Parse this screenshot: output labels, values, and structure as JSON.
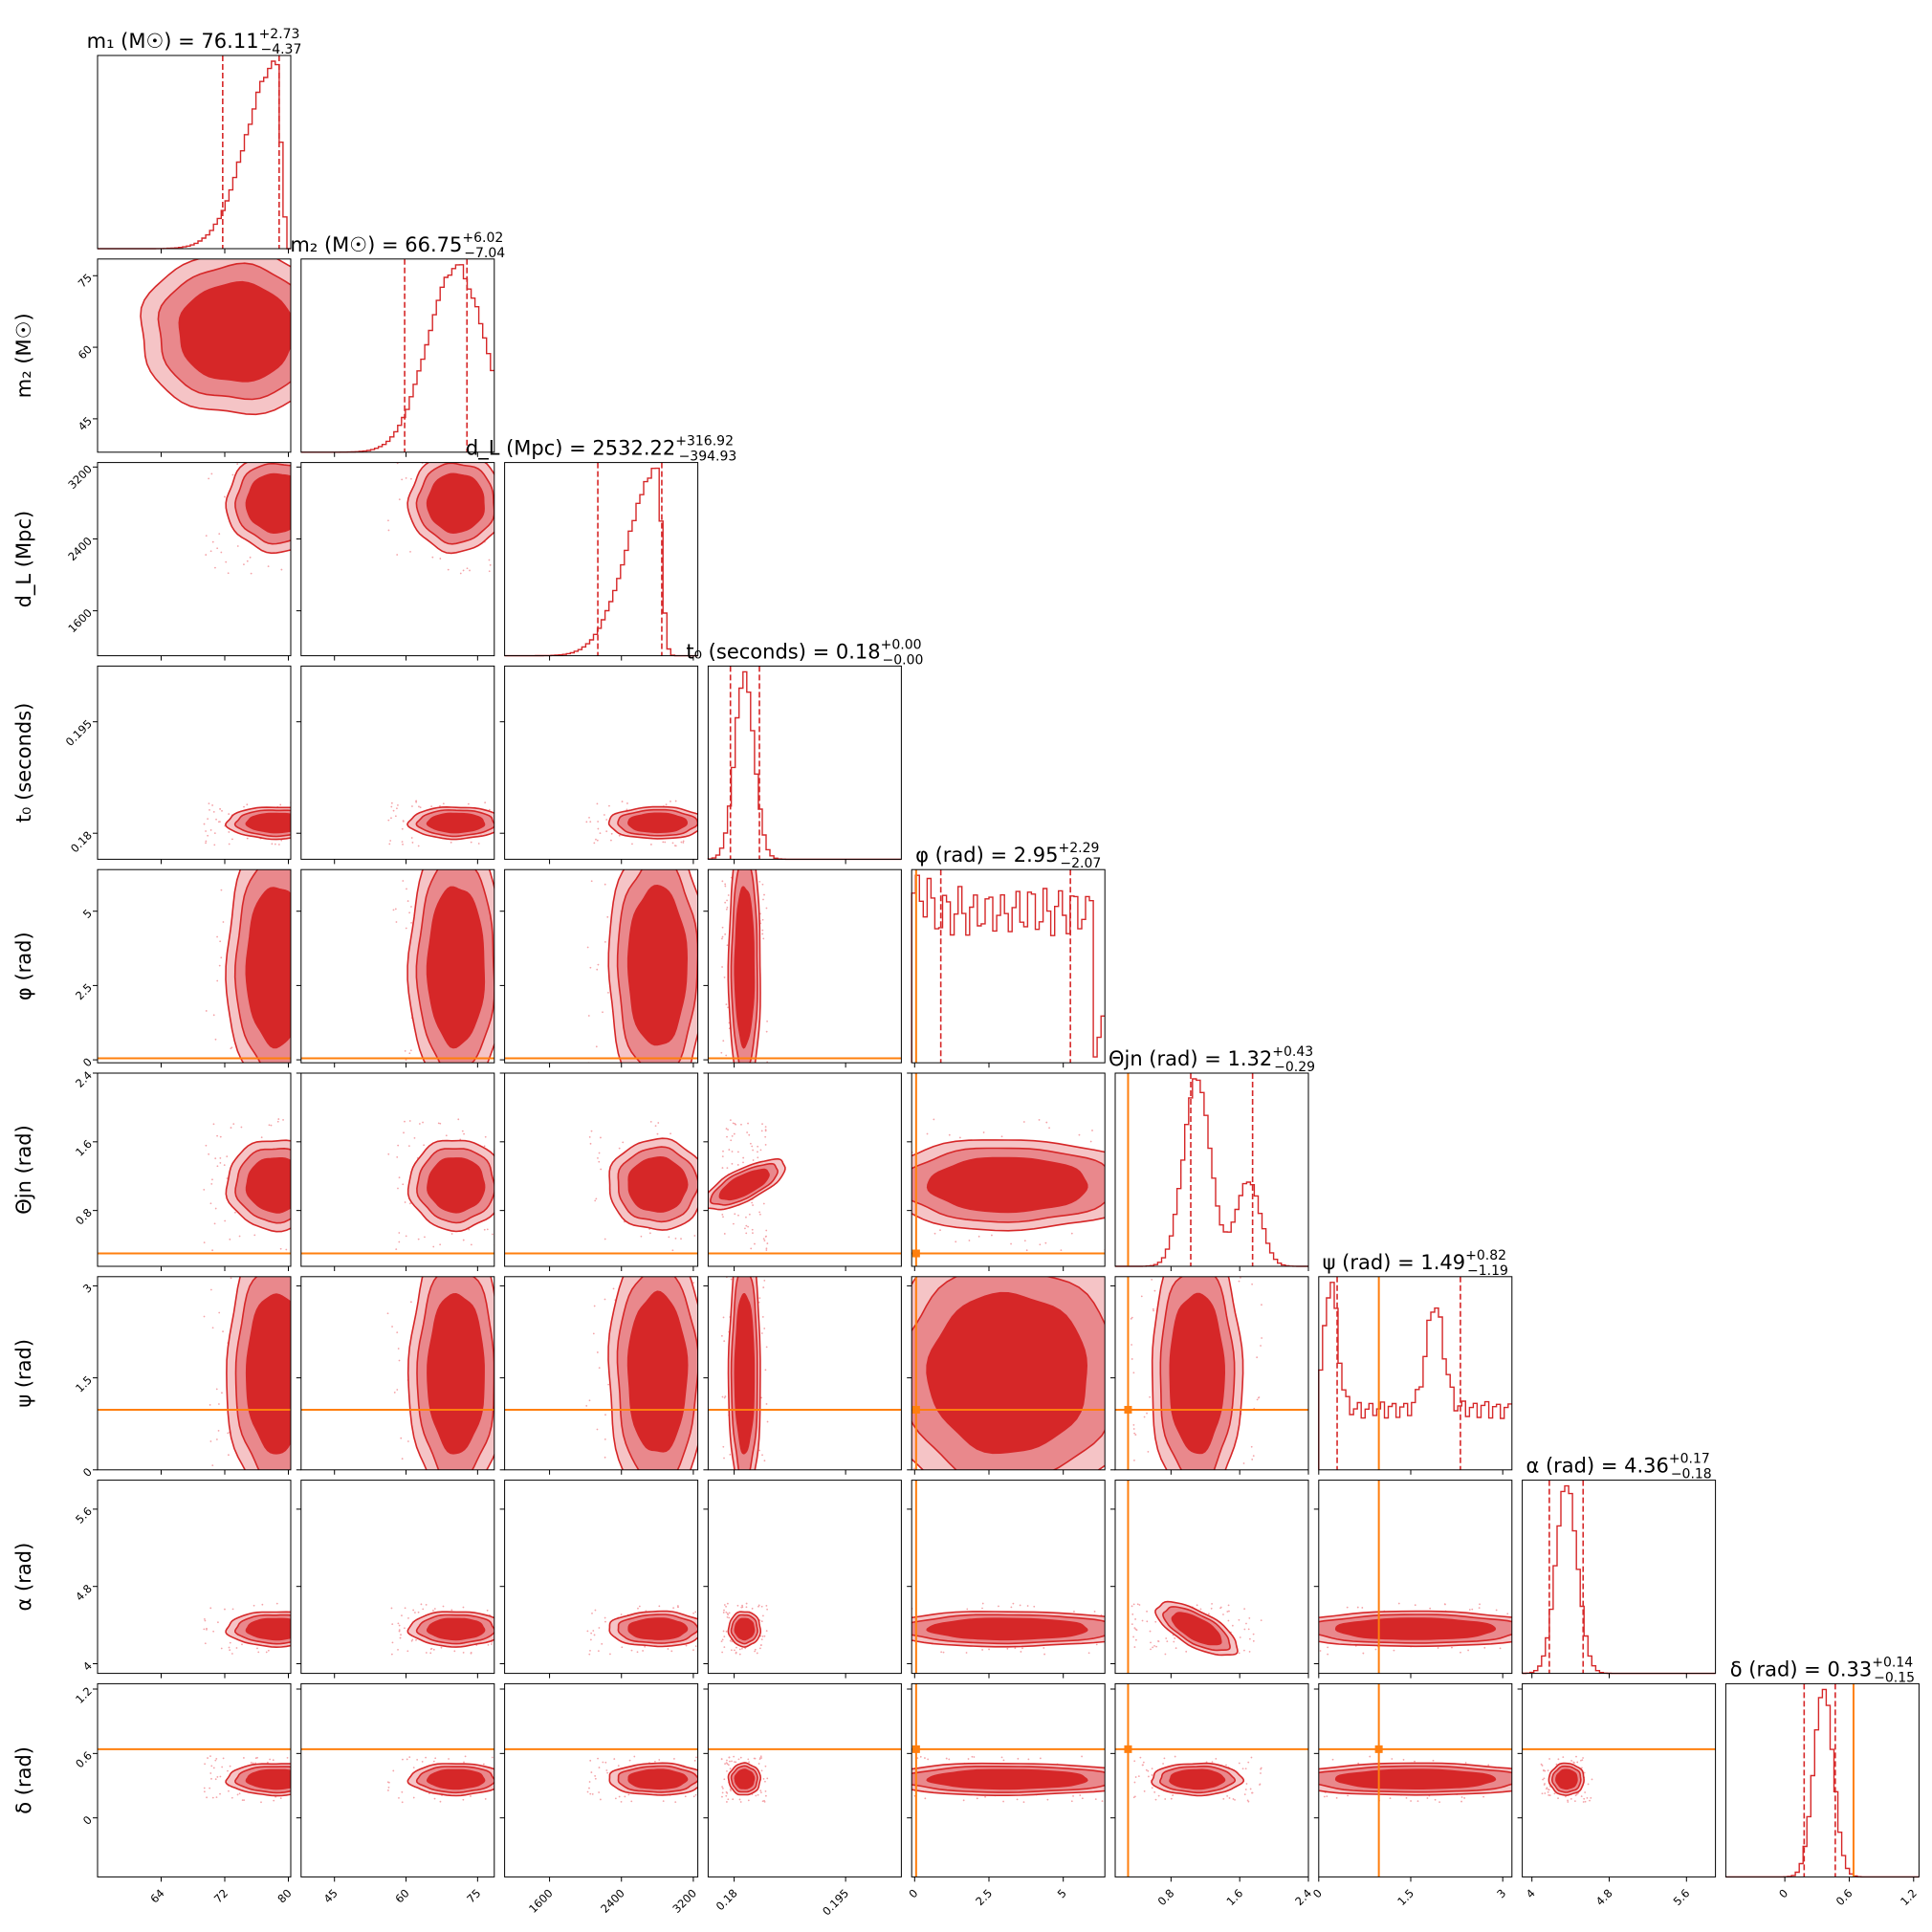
{
  "chart_data": {
    "type": "corner",
    "colors": {
      "posterior": "#d62728",
      "truth": "#ff7f0e",
      "scatter": "#f4a3a8"
    },
    "params": [
      {
        "key": "m1",
        "label": "m₁ (M☉)",
        "ticks": [
          64,
          72,
          80
        ],
        "range": [
          56,
          80.3
        ],
        "title": "m₁ (M☉) = 76.11",
        "median": 76.11,
        "err_plus": 2.73,
        "err_minus": 4.37,
        "plus_text": "+2.73",
        "minus_text": "−4.37",
        "q_lo": 71.74,
        "q_hi": 78.84,
        "mode": 78.5,
        "spread": 3.8,
        "truth": null
      },
      {
        "key": "m2",
        "label": "m₂ (M☉)",
        "ticks": [
          45,
          60,
          75
        ],
        "range": [
          38,
          78.5
        ],
        "title": "m₂ (M☉) = 66.75",
        "median": 66.75,
        "err_plus": 6.02,
        "err_minus": 7.04,
        "plus_text": "+6.02",
        "minus_text": "−7.04",
        "q_lo": 59.71,
        "q_hi": 72.77,
        "mode": 70.5,
        "spread": 6.0,
        "truth": null
      },
      {
        "key": "dl",
        "label": "d_L (Mpc)",
        "ticks": [
          1600,
          2400,
          3200
        ],
        "range": [
          1100,
          3250
        ],
        "title": "d_L (Mpc) = 2532.22",
        "median": 2532.22,
        "err_plus": 316.92,
        "err_minus": 394.93,
        "plus_text": "+316.92",
        "minus_text": "−394.93",
        "q_lo": 2137.29,
        "q_hi": 2849.14,
        "mode": 2800,
        "spread": 330,
        "truth": null
      },
      {
        "key": "t0",
        "label": "t₀ (seconds)",
        "ticks": [
          0.18,
          0.195
        ],
        "range": [
          0.1765,
          0.2025
        ],
        "title": "t₀ (seconds) = 0.18",
        "median": 0.18,
        "err_plus": 0.0,
        "err_minus": 0.0,
        "plus_text": "+0.00",
        "minus_text": "−0.00",
        "q_lo": 0.1795,
        "q_hi": 0.1834,
        "mode": 0.1814,
        "spread": 0.0013,
        "truth": null
      },
      {
        "key": "phi",
        "label": "φ (rad)",
        "ticks": [
          0.0,
          2.5,
          5.0
        ],
        "range": [
          -0.1,
          6.4
        ],
        "title": "φ (rad) = 2.95",
        "median": 2.95,
        "err_plus": 2.29,
        "err_minus": 2.07,
        "plus_text": "+2.29",
        "minus_text": "−2.07",
        "q_lo": 0.88,
        "q_hi": 5.24,
        "mode": 3.1,
        "spread": 2.0,
        "truth": 0.05
      },
      {
        "key": "tjn",
        "label": "Θjn (rad)",
        "ticks": [
          0.8,
          1.6,
          2.4
        ],
        "range": [
          0.15,
          2.4
        ],
        "title": "Θjn (rad) = 1.32",
        "median": 1.32,
        "err_plus": 0.43,
        "err_minus": 0.29,
        "plus_text": "+0.43",
        "minus_text": "−0.29",
        "q_lo": 1.03,
        "q_hi": 1.75,
        "mode": 1.1,
        "spread": 0.32,
        "truth": 0.3
      },
      {
        "key": "psi",
        "label": "ψ (rad)",
        "ticks": [
          0.0,
          1.5,
          3.0
        ],
        "range": [
          0.0,
          3.15
        ],
        "title": "ψ (rad) = 1.49",
        "median": 1.49,
        "err_plus": 0.82,
        "err_minus": 1.19,
        "plus_text": "+0.82",
        "minus_text": "−1.19",
        "q_lo": 0.3,
        "q_hi": 2.31,
        "mode": 1.9,
        "spread": 0.9,
        "truth": 0.98
      },
      {
        "key": "ra",
        "label": "α (rad)",
        "ticks": [
          4.0,
          4.8,
          5.6
        ],
        "range": [
          3.9,
          5.9
        ],
        "title": "α (rad) = 4.36",
        "median": 4.36,
        "err_plus": 0.17,
        "err_minus": 0.18,
        "plus_text": "+0.17",
        "minus_text": "−0.18",
        "q_lo": 4.18,
        "q_hi": 4.53,
        "mode": 4.36,
        "spread": 0.11,
        "truth": null
      },
      {
        "key": "dec",
        "label": "δ (rad)",
        "ticks": [
          0.0,
          0.6,
          1.2
        ],
        "range": [
          -0.55,
          1.25
        ],
        "title": "δ (rad) = 0.33",
        "median": 0.33,
        "err_plus": 0.14,
        "err_minus": 0.15,
        "plus_text": "+0.14",
        "minus_text": "−0.15",
        "q_lo": 0.18,
        "q_hi": 0.47,
        "mode": 0.36,
        "spread": 0.09,
        "truth": 0.64
      }
    ]
  }
}
